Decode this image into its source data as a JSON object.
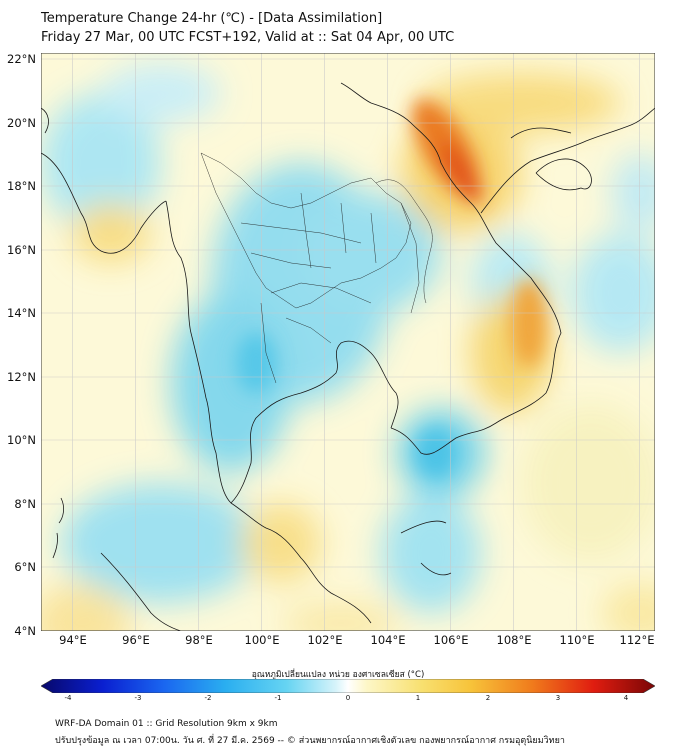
{
  "title": {
    "line1": "Temperature Change 24-hr (℃) - [Data Assimilation]",
    "line2": "Friday 27 Mar, 00 UTC FCST+192, Valid at :: Sat 04 Apr, 00 UTC"
  },
  "map": {
    "lat_ticks": [
      "22°N",
      "20°N",
      "18°N",
      "16°N",
      "14°N",
      "12°N",
      "10°N",
      "8°N",
      "6°N",
      "4°N"
    ],
    "lon_ticks": [
      "94°E",
      "96°E",
      "98°E",
      "100°E",
      "102°E",
      "104°E",
      "106°E",
      "108°E",
      "110°E",
      "112°E"
    ],
    "lat_range": [
      4,
      22.2
    ],
    "lon_range": [
      93.0,
      112.5
    ],
    "gridlines": true
  },
  "colorbar": {
    "label": "อุณหภูมิเปลี่ยนแปลง หน่วย องศาเซลเซียส (°C)",
    "ticks": [
      "-4",
      "-3",
      "-2",
      "-1",
      "0",
      "1",
      "2",
      "3",
      "4"
    ],
    "min": -4,
    "max": 4
  },
  "footer": {
    "line1": "WRF-DA Domain 01 :: Grid Resolution 9km x 9km",
    "line2": "ปรับปรุงข้อมูล ณ เวลา 07:00น. วัน ศ. ที่ 27 มี.ค. 2569 -- © ส่วนพยากรณ์อากาศเชิงตัวเลข กองพยากรณ์อากาศ กรมอุตุนิยมวิทยา"
  },
  "colors": {
    "warm": "#f7c948",
    "hot": "#e84a10",
    "cool": "#6fd6ee",
    "coast": "#1a1a1a"
  }
}
